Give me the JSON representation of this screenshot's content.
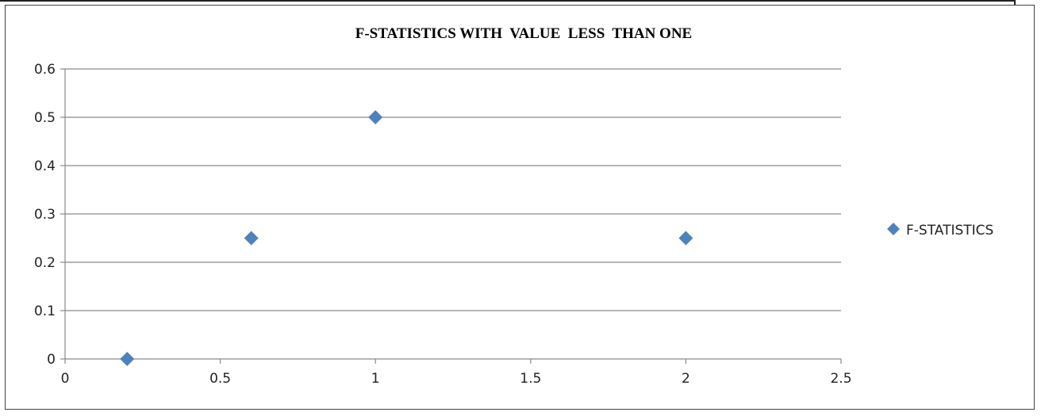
{
  "chart_data": {
    "type": "scatter",
    "title": "F-STATISTICS WITH  VALUE  LESS  THAN ONE",
    "xlabel": "",
    "ylabel": "",
    "xlim": [
      0,
      2.5
    ],
    "ylim": [
      0,
      0.6
    ],
    "x_ticks": [
      "0",
      "0.5",
      "1",
      "1.5",
      "2",
      "2.5"
    ],
    "y_ticks": [
      "0",
      "0.1",
      "0.2",
      "0.3",
      "0.4",
      "0.5",
      "0.6"
    ],
    "grid": "horizontal",
    "legend_position": "right",
    "series": [
      {
        "name": "F-STATISTICS",
        "color": "#4F81BD",
        "marker": "diamond",
        "points": [
          {
            "x": 0.2,
            "y": 0
          },
          {
            "x": 0.6,
            "y": 0.25
          },
          {
            "x": 1,
            "y": 0.5
          },
          {
            "x": 2,
            "y": 0.25
          }
        ]
      }
    ]
  }
}
